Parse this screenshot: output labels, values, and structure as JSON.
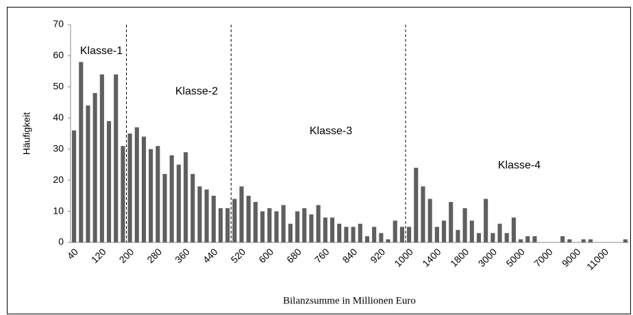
{
  "chart_data": {
    "type": "bar",
    "x_label": "Bilanzsumme in Millionen Euro",
    "y_label": "Häufigkeit",
    "annotations": [
      "Klasse-1",
      "Klasse-2",
      "Klasse-3",
      "Klasse-4"
    ],
    "categories": [
      "40",
      null,
      null,
      null,
      "120",
      null,
      null,
      null,
      "200",
      null,
      null,
      null,
      "280",
      null,
      null,
      null,
      "360",
      null,
      null,
      null,
      "440",
      null,
      null,
      null,
      "520",
      null,
      null,
      null,
      "600",
      null,
      null,
      null,
      "680",
      null,
      null,
      null,
      "760",
      null,
      null,
      null,
      "840",
      null,
      null,
      null,
      "920",
      null,
      null,
      null,
      "1000",
      null,
      null,
      null,
      "1400",
      null,
      null,
      null,
      "1800",
      null,
      null,
      null,
      "3000",
      null,
      null,
      null,
      "5000",
      null,
      null,
      null,
      "7000",
      null,
      null,
      null,
      "9000",
      null,
      null,
      null,
      "11000",
      null,
      null,
      null
    ],
    "values": [
      36,
      58,
      44,
      48,
      54,
      39,
      54,
      31,
      35,
      37,
      34,
      30,
      31,
      22,
      28,
      25,
      29,
      22,
      18,
      17,
      15,
      11,
      11,
      14,
      18,
      15,
      13,
      10,
      11,
      10,
      12,
      6,
      10,
      11,
      9,
      12,
      8,
      8,
      6,
      5,
      5,
      6,
      2,
      5,
      3,
      1,
      7,
      5,
      5,
      24,
      18,
      14,
      5,
      7,
      13,
      4,
      11,
      7,
      3,
      14,
      3,
      6,
      3,
      8,
      1,
      2,
      2,
      0,
      0,
      0,
      2,
      1,
      0,
      1,
      1,
      0,
      0,
      0,
      0,
      1
    ],
    "color": "#5f5f5f",
    "ylim": [
      0,
      70
    ],
    "yticks": [
      0,
      10,
      20,
      30,
      40,
      50,
      60,
      70
    ],
    "grid": false
  }
}
